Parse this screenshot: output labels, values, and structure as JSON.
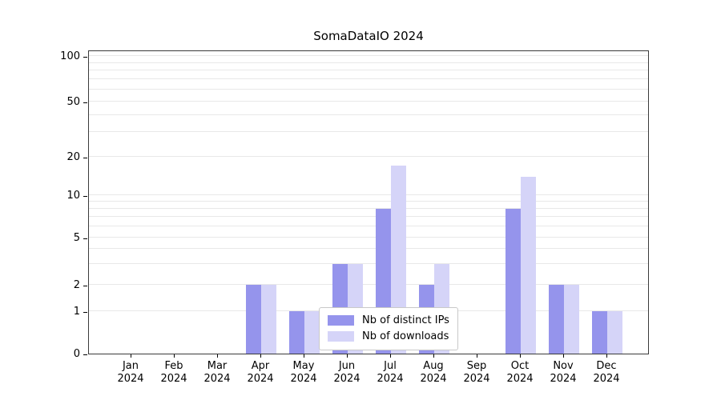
{
  "chart_data": {
    "type": "bar",
    "title": "SomaDataIO 2024",
    "months": [
      "Jan",
      "Feb",
      "Mar",
      "Apr",
      "May",
      "Jun",
      "Jul",
      "Aug",
      "Sep",
      "Oct",
      "Nov",
      "Dec"
    ],
    "year_label": "2024",
    "series": [
      {
        "name": "Nb of distinct IPs",
        "color": "#9594ec",
        "values": [
          0,
          0,
          0,
          2,
          1,
          3,
          8,
          2,
          0,
          8,
          2,
          1
        ]
      },
      {
        "name": "Nb of downloads",
        "color": "#d5d4f8",
        "values": [
          0,
          0,
          0,
          2,
          1,
          3,
          17,
          3,
          0,
          14,
          2,
          1
        ]
      }
    ],
    "y_ticks": [
      0,
      1,
      2,
      5,
      10,
      20,
      50,
      100
    ],
    "y_minor_ticks": [
      3,
      4,
      6,
      7,
      8,
      9,
      30,
      40,
      60,
      70,
      80,
      90
    ],
    "y_axis_scale": "log-like",
    "ylim": [
      0,
      100
    ],
    "legend_position": "lower center",
    "grid": true
  }
}
